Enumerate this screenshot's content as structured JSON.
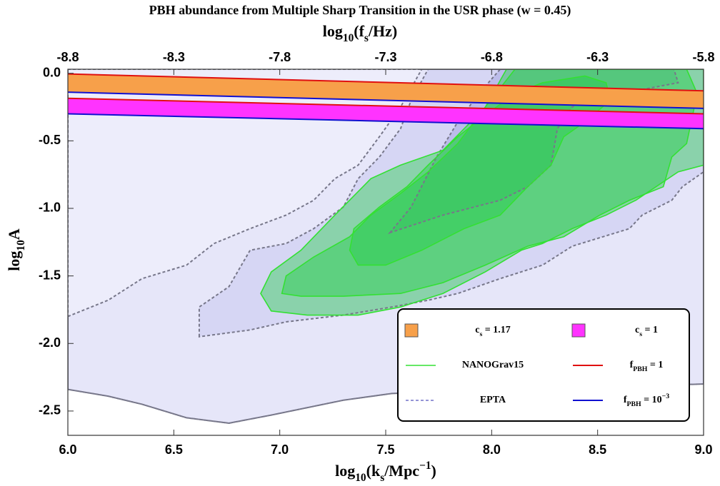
{
  "chart_data": {
    "type": "contour",
    "title": "PBH abundance from Multiple Sharp Transition in the USR phase (w = 0.45)",
    "x_label": [
      {
        "text": "log"
      },
      {
        "text": "10",
        "shift": "sub"
      },
      {
        "text": "(k"
      },
      {
        "text": "s",
        "shift": "sub"
      },
      {
        "text": "/Mpc"
      },
      {
        "text": "−1",
        "shift": "super"
      },
      {
        "text": ")"
      }
    ],
    "x2_label": [
      {
        "text": "log"
      },
      {
        "text": "10",
        "shift": "sub"
      },
      {
        "text": "(f"
      },
      {
        "text": "s",
        "shift": "sub"
      },
      {
        "text": "/Hz)"
      }
    ],
    "y_label": [
      {
        "text": "log"
      },
      {
        "text": "10",
        "shift": "sub"
      },
      {
        "text": "A"
      }
    ],
    "xlim": [
      6,
      9
    ],
    "xticks": [
      {
        "value": 6,
        "label": "6.0"
      },
      6.5,
      {
        "value": 7,
        "label": "7.0"
      },
      7.5,
      {
        "value": 8,
        "label": "8.0"
      },
      8.5,
      {
        "value": 9,
        "label": "9.0"
      }
    ],
    "x2lim": [
      -8.8,
      -5.8
    ],
    "x2ticks": [
      -8.8,
      -8.3,
      -7.8,
      -7.3,
      -6.8,
      -6.3,
      -5.8
    ],
    "ylim": [
      -2.68,
      0.03
    ],
    "yticks": [
      {
        "value": 0,
        "label": "0.0"
      },
      -0.5,
      {
        "value": -1,
        "label": "-1.0"
      },
      -1.5,
      {
        "value": -2,
        "label": "-2.0"
      },
      -2.5
    ],
    "legend": "lower right",
    "series": [
      {
        "name": "EPTA",
        "color": "#7070c8",
        "dashed": true,
        "fills": [
          "#ededfb",
          "#e6e6f9",
          "#d6d6f4",
          "#bcbcea"
        ],
        "levels": [
          {
            "x": [
              6,
              9,
              9,
              7.53,
              7.3,
              6.96,
              6.76,
              6.56,
              6.35,
              6.19,
              6
            ],
            "y": [
              0.03,
              0.03,
              -2.3,
              -2.37,
              -2.42,
              -2.53,
              -2.59,
              -2.55,
              -2.45,
              -2.39,
              -2.34
            ]
          },
          {
            "x": [
              6,
              6.19,
              6.35,
              6.56,
              6.69,
              6.86,
              7.03,
              7.16,
              7.26,
              7.37,
              7.47,
              7.57,
              7.67,
              9,
              9,
              7.53,
              7.3,
              6.96,
              6.76,
              6.56,
              6.35,
              6.19,
              6
            ],
            "y": [
              -1.8,
              -1.68,
              -1.52,
              -1.42,
              -1.26,
              -1.15,
              -1.05,
              -0.94,
              -0.78,
              -0.68,
              -0.47,
              -0.25,
              0.03,
              0.03,
              -2.3,
              -2.37,
              -2.42,
              -2.53,
              -2.59,
              -2.55,
              -2.45,
              -2.39,
              -2.34
            ]
          },
          {
            "x": [
              6.62,
              6.62,
              6.76,
              6.86,
              7.03,
              7.16,
              7.3,
              7.37,
              7.47,
              7.57,
              7.62,
              7.7,
              9,
              9,
              8.9,
              8.85,
              8.71,
              8.65,
              8.38,
              8.24,
              8.04,
              7.84,
              7.7,
              7.53,
              7.3,
              7.03,
              6.86
            ],
            "y": [
              -1.95,
              -1.73,
              -1.58,
              -1.31,
              -1.26,
              -1.15,
              -0.99,
              -0.78,
              -0.62,
              -0.41,
              -0.2,
              0.03,
              0.03,
              -0.73,
              -0.84,
              -0.94,
              -1.05,
              -1.15,
              -1.28,
              -1.42,
              -1.52,
              -1.63,
              -1.68,
              -1.73,
              -1.79,
              -1.84,
              -1.9
            ]
          },
          {
            "x": [
              7.52,
              7.62,
              7.74,
              7.84,
              7.94,
              8.04,
              8.86,
              8.88,
              8.61,
              8.48,
              8.38,
              8.31,
              8.28,
              8.17,
              8.04,
              7.77
            ],
            "y": [
              -1.18,
              -0.99,
              -0.62,
              -0.36,
              -0.15,
              0.03,
              0.03,
              -0.07,
              -0.15,
              -0.15,
              -0.25,
              -0.41,
              -0.68,
              -0.84,
              -0.94,
              -1.05
            ]
          }
        ]
      },
      {
        "name": "NANOGrav15",
        "color": "#33e033",
        "dashed": false,
        "fills": [
          "#22cc44",
          "#22cc44",
          "#22cc44"
        ],
        "levels": [
          {
            "x": [
              6.91,
              6.96,
              7.1,
              7.26,
              7.43,
              7.57,
              7.77,
              7.97,
              8.11,
              9,
              9,
              8.88,
              8.68,
              8.54,
              8.38,
              8.24,
              8.14,
              7.97,
              7.77,
              7.57,
              7.37,
              7.13,
              6.96
            ],
            "y": [
              -1.63,
              -1.47,
              -1.31,
              -1.05,
              -0.78,
              -0.68,
              -0.57,
              -0.25,
              0.03,
              0.03,
              -0.68,
              -0.73,
              -0.94,
              -1.05,
              -1.15,
              -1.26,
              -1.31,
              -1.47,
              -1.63,
              -1.73,
              -1.79,
              -1.79,
              -1.76
            ]
          },
          {
            "x": [
              7.01,
              7.03,
              7.16,
              7.33,
              7.43,
              7.57,
              7.7,
              7.84,
              7.97,
              8.07,
              8.92,
              8.97,
              8.92,
              8.85,
              8.81,
              8.65,
              8.51,
              8.34,
              8.17,
              7.97,
              7.77,
              7.57,
              7.3,
              7.1
            ],
            "y": [
              -1.63,
              -1.5,
              -1.36,
              -1.21,
              -1.05,
              -0.89,
              -0.73,
              -0.52,
              -0.25,
              0.03,
              0.03,
              -0.15,
              -0.52,
              -0.62,
              -0.84,
              -0.94,
              -1.05,
              -1.21,
              -1.28,
              -1.42,
              -1.55,
              -1.63,
              -1.65,
              -1.65
            ]
          },
          {
            "x": [
              7.33,
              7.35,
              7.47,
              7.6,
              7.7,
              7.84,
              7.97,
              8.11,
              8.24,
              8.44,
              8.54,
              8.56,
              8.44,
              8.34,
              8.28,
              8.17,
              8.04,
              7.87,
              7.67,
              7.5,
              7.37
            ],
            "y": [
              -1.31,
              -1.15,
              -0.99,
              -0.84,
              -0.68,
              -0.47,
              -0.31,
              -0.15,
              -0.07,
              -0.02,
              -0.07,
              -0.2,
              -0.36,
              -0.47,
              -0.68,
              -0.84,
              -1.05,
              -1.15,
              -1.31,
              -1.42,
              -1.42
            ]
          }
        ]
      }
    ],
    "bands": [
      {
        "name": [
          {
            "text": "c"
          },
          {
            "text": "s",
            "shift": "sub"
          },
          {
            "text": " = 1.17"
          }
        ],
        "color": "#f7a04a",
        "x": [
          6,
          9
        ],
        "edges": [
          [
            -0.005,
            -0.13
          ],
          [
            -0.14,
            -0.26
          ]
        ]
      },
      {
        "name": [
          {
            "text": "c"
          },
          {
            "text": "s",
            "shift": "sub"
          },
          {
            "text": " = 1"
          }
        ],
        "color": "#ff33ff",
        "x": [
          6,
          9
        ],
        "edges": [
          [
            -0.185,
            -0.3
          ],
          [
            -0.3,
            -0.41
          ]
        ]
      }
    ],
    "edge_lines": [
      {
        "name": [
          {
            "text": "f"
          },
          {
            "text": "PBH",
            "shift": "sub"
          },
          {
            "text": " = 1"
          }
        ],
        "color": "#e01010"
      },
      {
        "name": [
          {
            "text": "f"
          },
          {
            "text": "PBH",
            "shift": "sub"
          },
          {
            "text": " = 10"
          },
          {
            "text": "−3",
            "shift": "super"
          }
        ],
        "color": "#1010d0"
      }
    ]
  }
}
